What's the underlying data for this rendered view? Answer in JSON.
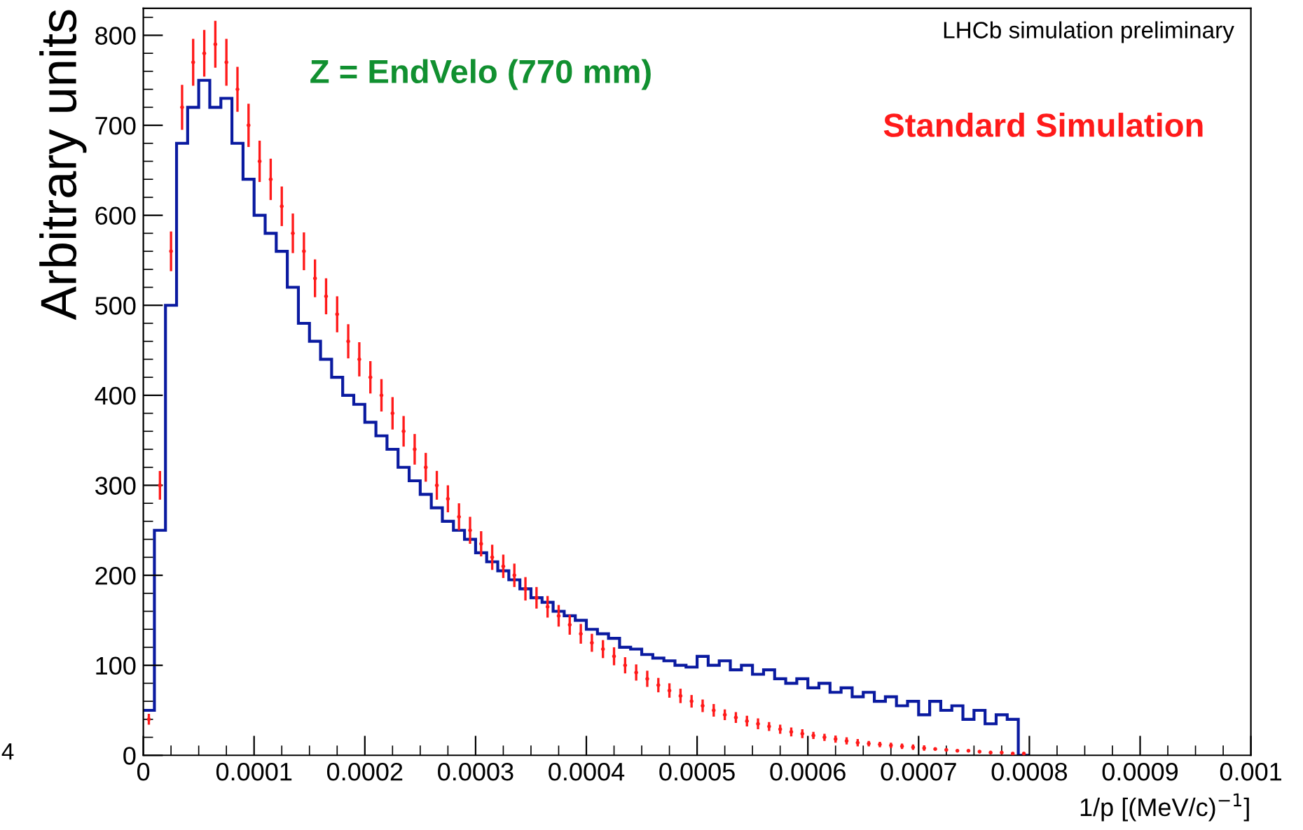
{
  "chart_data": {
    "type": "histogram",
    "xlabel": "1/p [(MeV/c)$^{−1}$]",
    "ylabel": "Arbitrary units",
    "annotations": [
      "Z = EndVelo (770 mm)",
      "LHCb simulation preliminary",
      "4"
    ],
    "xlim": [
      0,
      0.001
    ],
    "ylim": [
      0,
      830
    ],
    "xticks": [
      {
        "value": 0,
        "label": "0"
      },
      {
        "value": 0.0001,
        "label": "0.0001"
      },
      {
        "value": 0.0002,
        "label": "0.0002"
      },
      {
        "value": 0.0003,
        "label": "0.0003"
      },
      {
        "value": 0.0004,
        "label": "0.0004"
      },
      {
        "value": 0.0005,
        "label": "0.0005"
      },
      {
        "value": 0.0006,
        "label": "0.0006"
      },
      {
        "value": 0.0007,
        "label": "0.0007"
      },
      {
        "value": 0.0008,
        "label": "0.0008"
      },
      {
        "value": 0.0009,
        "label": "0.0009"
      },
      {
        "value": 0.001,
        "label": "0.001"
      }
    ],
    "yticks": [
      0,
      100,
      200,
      300,
      400,
      500,
      600,
      700,
      800
    ],
    "legend": "top right",
    "grid": false,
    "series": [
      {
        "color": "#0a1aa0",
        "bins": [
          0,
          1e-05,
          2e-05,
          3e-05,
          4e-05,
          5e-05,
          6e-05,
          7e-05,
          8e-05,
          9e-05,
          0.0001,
          0.00011,
          0.00012,
          0.00013,
          0.00014,
          0.00015,
          0.00016,
          0.00017,
          0.00018,
          0.00019,
          0.0002,
          0.00021,
          0.00022,
          0.00023,
          0.00024,
          0.00025,
          0.00026,
          0.00027,
          0.00028,
          0.00029,
          0.0003,
          0.00031,
          0.00032,
          0.00033,
          0.00034,
          0.00035,
          0.00036,
          0.00037,
          0.00038,
          0.00039,
          0.0004,
          0.00041,
          0.00042,
          0.00043,
          0.00044,
          0.00045,
          0.00046,
          0.00047,
          0.00048,
          0.00049,
          0.0005,
          0.00051,
          0.00052,
          0.00053,
          0.00054,
          0.00055,
          0.00056,
          0.00057,
          0.00058,
          0.00059,
          0.0006,
          0.00061,
          0.00062,
          0.00063,
          0.00064,
          0.00065,
          0.00066,
          0.00067,
          0.00068,
          0.00069,
          0.0007,
          0.00071,
          0.00072,
          0.00073,
          0.00074,
          0.00075,
          0.00076,
          0.00077,
          0.00078,
          0.00079,
          0.0008
        ],
        "values": [
          50,
          250,
          500,
          680,
          720,
          750,
          720,
          730,
          680,
          640,
          600,
          580,
          560,
          520,
          480,
          460,
          440,
          420,
          400,
          390,
          370,
          355,
          340,
          320,
          305,
          290,
          275,
          260,
          250,
          240,
          225,
          215,
          205,
          195,
          185,
          175,
          170,
          160,
          155,
          150,
          140,
          135,
          130,
          120,
          118,
          112,
          108,
          105,
          100,
          98,
          110,
          100,
          105,
          95,
          100,
          90,
          95,
          85,
          80,
          85,
          75,
          80,
          70,
          75,
          65,
          70,
          60,
          65,
          55,
          60,
          45,
          60,
          50,
          55,
          40,
          50,
          35,
          45,
          40,
          0
        ]
      },
      {
        "type": "scatter",
        "name": "Standard Simulation",
        "color": "#ff1a1a",
        "x": [
          5e-06,
          1.5e-05,
          2.5e-05,
          3.5e-05,
          4.5e-05,
          5.5e-05,
          6.5e-05,
          7.5e-05,
          8.5e-05,
          9.5e-05,
          0.000105,
          0.000115,
          0.000125,
          0.000135,
          0.000145,
          0.000155,
          0.000165,
          0.000175,
          0.000185,
          0.000195,
          0.000205,
          0.000215,
          0.000225,
          0.000235,
          0.000245,
          0.000255,
          0.000265,
          0.000275,
          0.000285,
          0.000295,
          0.000305,
          0.000315,
          0.000325,
          0.000335,
          0.000345,
          0.000355,
          0.000365,
          0.000375,
          0.000385,
          0.000395,
          0.000405,
          0.000415,
          0.000425,
          0.000435,
          0.000445,
          0.000455,
          0.000465,
          0.000475,
          0.000485,
          0.000495,
          0.000505,
          0.000515,
          0.000525,
          0.000535,
          0.000545,
          0.000555,
          0.000565,
          0.000575,
          0.000585,
          0.000595,
          0.000605,
          0.000615,
          0.000625,
          0.000635,
          0.000645,
          0.000655,
          0.000665,
          0.000675,
          0.000685,
          0.000695,
          0.000705,
          0.000715,
          0.000725,
          0.000735,
          0.000745,
          0.000755,
          0.000765,
          0.000775,
          0.000785,
          0.000795
        ],
        "values": [
          40,
          300,
          560,
          720,
          770,
          780,
          790,
          770,
          740,
          700,
          660,
          640,
          610,
          580,
          560,
          530,
          510,
          490,
          460,
          440,
          420,
          400,
          380,
          360,
          340,
          320,
          300,
          285,
          265,
          250,
          235,
          220,
          210,
          200,
          185,
          175,
          165,
          155,
          145,
          135,
          125,
          118,
          110,
          100,
          92,
          85,
          78,
          72,
          66,
          60,
          55,
          50,
          45,
          42,
          38,
          35,
          32,
          29,
          26,
          24,
          22,
          20,
          18,
          16,
          14,
          13,
          12,
          11,
          10,
          9,
          8,
          7,
          6,
          5,
          5,
          4,
          3,
          3,
          2,
          2
        ],
        "errors": [
          6,
          16,
          22,
          25,
          26,
          26,
          26,
          26,
          25,
          24,
          23,
          23,
          22,
          22,
          21,
          21,
          20,
          20,
          19,
          19,
          18,
          18,
          18,
          17,
          17,
          16,
          16,
          15,
          15,
          15,
          14,
          14,
          13,
          13,
          13,
          12,
          12,
          12,
          11,
          11,
          10,
          10,
          10,
          9,
          9,
          9,
          8,
          8,
          8,
          7,
          7,
          7,
          6,
          6,
          6,
          6,
          5,
          5,
          5,
          5,
          4,
          4,
          4,
          4,
          4,
          3,
          3,
          3,
          3,
          3,
          3,
          null,
          null,
          null,
          null,
          null,
          null,
          null,
          null,
          null
        ]
      }
    ]
  }
}
